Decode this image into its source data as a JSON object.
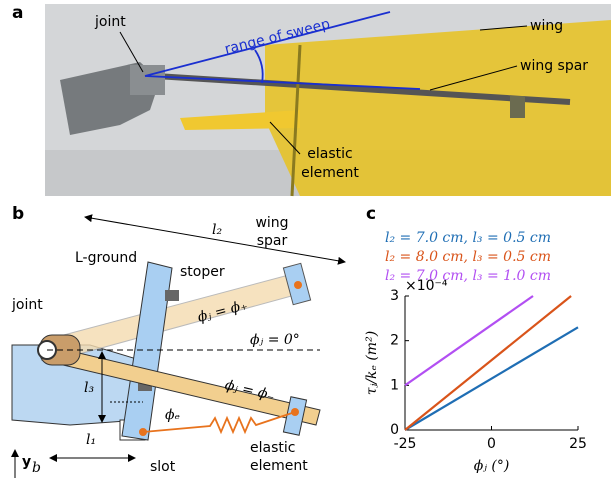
{
  "panel_a": {
    "label": "a",
    "joint": "joint",
    "range_of_sweep": "range of sweep",
    "wing": "wing",
    "wing_spar": "wing spar",
    "elastic_element": [
      "elastic",
      "element"
    ]
  },
  "panel_b": {
    "label": "b",
    "joint": "joint",
    "l_ground": "L-ground",
    "stoper": "stoper",
    "wing_spar": [
      "wing",
      "spar"
    ],
    "l2": "l₂",
    "phi_plus": "ϕⱼ = ϕ₊",
    "phi_zero": "ϕⱼ = 0°",
    "phi_minus": "ϕⱼ = ϕ₋",
    "l3": "l₃",
    "phi_e": "ϕₑ",
    "y_b": "y",
    "y_b_sub": "b",
    "l1": "l₁",
    "slot": "slot",
    "elastic_element": [
      "elastic",
      "element"
    ]
  },
  "chart_data": {
    "type": "line",
    "panel_label": "c",
    "xlabel": "ϕⱼ (°)",
    "ylabel": "τⱼ/kₑ (m²)",
    "y_multiplier": "×10⁻⁴",
    "xlim": [
      -25,
      25
    ],
    "ylim": [
      0,
      3
    ],
    "xticks": [
      -25,
      0,
      25
    ],
    "yticks": [
      0,
      1,
      2,
      3
    ],
    "series": [
      {
        "name": "l₂ = 7.0 cm, l₃ = 0.5 cm",
        "color": "#1f6eb4",
        "x": [
          -25,
          25
        ],
        "values": [
          0,
          2.3
        ]
      },
      {
        "name": "l₂ = 8.0 cm, l₃ = 0.5 cm",
        "color": "#d9541a",
        "x": [
          -25,
          23
        ],
        "values": [
          0,
          3
        ]
      },
      {
        "name": "l₂ = 7.0 cm, l₃ = 1.0 cm",
        "color": "#b24ff2",
        "x": [
          -25,
          12
        ],
        "values": [
          1,
          3
        ]
      }
    ]
  }
}
